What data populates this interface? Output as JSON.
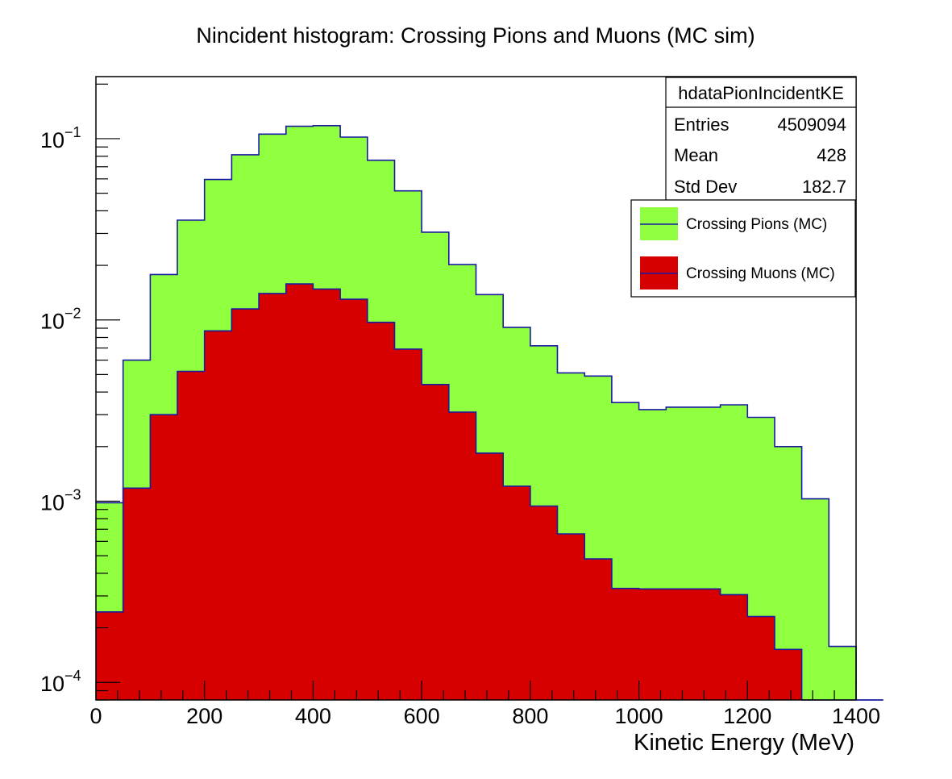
{
  "chart_data": {
    "type": "bar",
    "title": "Nincident histogram: Crossing Pions and Muons (MC sim)",
    "xlabel": "Kinetic Energy (MeV)",
    "ylabel": "",
    "xlim": [
      0,
      1400
    ],
    "ylim": [
      8e-05,
      0.22
    ],
    "yscale": "log",
    "bin_width": 50,
    "x_ticks": [
      "0",
      "200",
      "400",
      "600",
      "800",
      "1000",
      "1200",
      "1400"
    ],
    "x_tick_values": [
      0,
      200,
      400,
      600,
      800,
      1000,
      1200,
      1400
    ],
    "y_ticks": [
      {
        "value": 0.1,
        "base": "10",
        "exp": "−1"
      },
      {
        "value": 0.01,
        "base": "10",
        "exp": "−2"
      },
      {
        "value": 0.001,
        "base": "10",
        "exp": "−3"
      },
      {
        "value": 0.0001,
        "base": "10",
        "exp": "−4"
      }
    ],
    "grid": false,
    "legend_position": "top-right",
    "series": [
      {
        "name": "Crossing Pions (MC)",
        "color": "#90ff40",
        "values": [
          0.00098,
          0.006,
          0.0178,
          0.0355,
          0.0595,
          0.0815,
          0.106,
          0.117,
          0.118,
          0.102,
          0.076,
          0.0515,
          0.0305,
          0.0202,
          0.0138,
          0.0091,
          0.0072,
          0.0051,
          0.0049,
          0.0035,
          0.0032,
          0.0033,
          0.0033,
          0.0034,
          0.0029,
          0.002,
          0.00103,
          0.000158,
          8e-05
        ]
      },
      {
        "name": "Crossing Muons (MC)",
        "color": "#d60000",
        "values": [
          0.000245,
          0.00118,
          0.003,
          0.0052,
          0.0087,
          0.0115,
          0.014,
          0.0158,
          0.0148,
          0.013,
          0.0097,
          0.0069,
          0.0044,
          0.0031,
          0.00184,
          0.00121,
          0.00094,
          0.00066,
          0.00048,
          0.00033,
          0.000328,
          0.000328,
          0.000328,
          0.000305,
          0.000231,
          0.000152,
          0,
          0,
          0
        ]
      }
    ],
    "stats_box": {
      "name": "hdataPionIncidentKE",
      "rows": [
        {
          "label": "Entries",
          "value": "4509094"
        },
        {
          "label": "Mean",
          "value": "428"
        },
        {
          "label": "Std Dev",
          "value": "182.7"
        }
      ]
    },
    "colors": {
      "outline": "#1a1aa0",
      "frame": "#000000"
    }
  }
}
